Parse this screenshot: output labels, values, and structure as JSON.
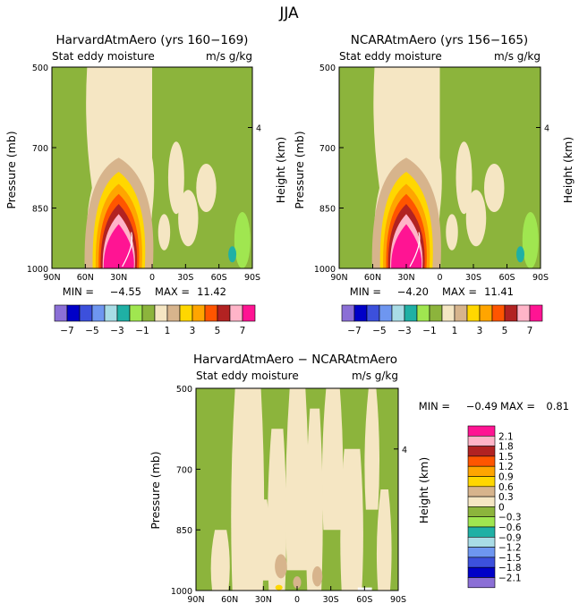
{
  "figure": {
    "title": "JJA",
    "colors": {
      "levels": [
        "#8b6fd6",
        "#0000c8",
        "#3c50dc",
        "#6e96f0",
        "#a9dce6",
        "#1fb0a5",
        "#a0e650",
        "#8cb43c",
        "#f5e6c3",
        "#d7b48c",
        "#ffd700",
        "#ffa500",
        "#ff5500",
        "#b22222",
        "#ffb4c8",
        "#ff1493"
      ],
      "background_fill": "#8cb43c"
    }
  },
  "chart_data": [
    {
      "type": "heatmap",
      "panel": "top-left",
      "title": "HarvardAtmAero (yrs 160−169)",
      "variable": "Stat eddy moisture",
      "units": "m/s g/kg",
      "xlabel": "",
      "ylabel": "Pressure (mb)",
      "ylabel_right": "Height (km)",
      "x_ticks": [
        "90N",
        "60N",
        "30N",
        "0",
        "30S",
        "60S",
        "90S"
      ],
      "x_range": [
        90,
        -90
      ],
      "y_ticks": [
        "500",
        "700",
        "850",
        "1000"
      ],
      "y_range": [
        500,
        1000
      ],
      "right_ticks": [
        "4"
      ],
      "min_label": "MIN =",
      "min": "−4.55",
      "max_label": "MAX =",
      "max": "11.42",
      "colorbar_labels": [
        "−7",
        "−5",
        "−3",
        "−1",
        "1",
        "3",
        "5",
        "7"
      ],
      "feature": {
        "peak_lat": 30,
        "peak_value": 11.42,
        "column_lats": [
          60,
          0
        ]
      }
    },
    {
      "type": "heatmap",
      "panel": "top-right",
      "title": "NCARAtmAero (yrs 156−165)",
      "variable": "Stat eddy moisture",
      "units": "m/s g/kg",
      "xlabel": "",
      "ylabel": "Pressure (mb)",
      "ylabel_right": "Height (km)",
      "x_ticks": [
        "90N",
        "60N",
        "30N",
        "0",
        "30S",
        "60S",
        "90S"
      ],
      "x_range": [
        90,
        -90
      ],
      "y_ticks": [
        "500",
        "700",
        "850",
        "1000"
      ],
      "y_range": [
        500,
        1000
      ],
      "right_ticks": [
        "4"
      ],
      "min_label": "MIN =",
      "min": "−4.20",
      "max_label": "MAX =",
      "max": "11.41",
      "colorbar_labels": [
        "−7",
        "−5",
        "−3",
        "−1",
        "1",
        "3",
        "5",
        "7"
      ],
      "feature": {
        "peak_lat": 30,
        "peak_value": 11.41,
        "column_lats": [
          60,
          0
        ]
      }
    },
    {
      "type": "heatmap",
      "panel": "bottom",
      "title": "HarvardAtmAero − NCARAtmAero",
      "variable": "Stat eddy moisture",
      "units": "m/s g/kg",
      "xlabel": "",
      "ylabel": "Pressure (mb)",
      "ylabel_right": "Height (km)",
      "x_ticks": [
        "90N",
        "60N",
        "30N",
        "0",
        "30S",
        "60S",
        "90S"
      ],
      "x_range": [
        90,
        -90
      ],
      "y_ticks": [
        "500",
        "700",
        "850",
        "1000"
      ],
      "y_range": [
        500,
        1000
      ],
      "right_ticks": [
        "4"
      ],
      "min_label": "MIN =",
      "min": "−0.49",
      "max_label": "MAX =",
      "max": "0.81",
      "colorbar_labels": [
        "2.1",
        "1.8",
        "1.5",
        "1.2",
        "0.9",
        "0.6",
        "0.3",
        "0",
        "−0.3",
        "−0.6",
        "−0.9",
        "−1.2",
        "−1.5",
        "−1.8",
        "−2.1"
      ],
      "colorbar_colors": [
        "#ff1493",
        "#ffb4c8",
        "#b22222",
        "#ff5500",
        "#ffa500",
        "#ffd700",
        "#d7b48c",
        "#f5e6c3",
        "#8cb43c",
        "#a0e650",
        "#1fb0a5",
        "#a9dce6",
        "#6e96f0",
        "#3c50dc",
        "#0000c8",
        "#8b6fd6"
      ]
    }
  ]
}
